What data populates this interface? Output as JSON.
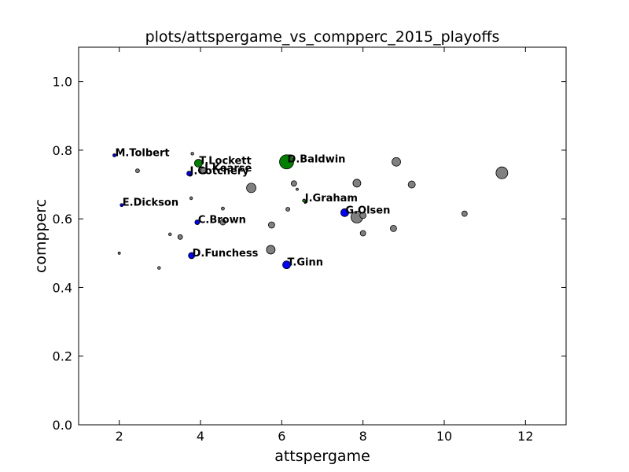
{
  "chart_data": {
    "type": "scatter",
    "title": "plots/attspergame_vs_compperc_2015_playoffs",
    "xlabel": "attspergame",
    "ylabel": "compperc",
    "xlim": [
      1,
      13
    ],
    "ylim": [
      0.0,
      1.1
    ],
    "xticks": [
      2,
      4,
      6,
      8,
      10,
      12
    ],
    "yticks": [
      0.0,
      0.2,
      0.4,
      0.6,
      0.8,
      1.0
    ],
    "xtick_labels": [
      "2",
      "4",
      "6",
      "8",
      "10",
      "12"
    ],
    "ytick_labels": [
      "0.0",
      "0.2",
      "0.4",
      "0.6",
      "0.8",
      "1.0"
    ],
    "grid": false,
    "colors": {
      "gray": "#808080",
      "green": "#008000",
      "blue": "#0000ff"
    },
    "points": [
      {
        "x": 1.88,
        "y": 0.785,
        "size": 2,
        "color": "blue",
        "label": "M.Tolbert"
      },
      {
        "x": 3.95,
        "y": 0.762,
        "size": 5,
        "color": "green",
        "label": "T.Lockett"
      },
      {
        "x": 4.08,
        "y": 0.74,
        "size": 4,
        "color": "gray",
        "label": "J.Kearse"
      },
      {
        "x": 3.72,
        "y": 0.732,
        "size": 3,
        "color": "blue",
        "label": "J.Cotchery"
      },
      {
        "x": 6.12,
        "y": 0.766,
        "size": 9,
        "color": "green",
        "label": "D.Baldwin"
      },
      {
        "x": 2.06,
        "y": 0.64,
        "size": 2,
        "color": "blue",
        "label": "E.Dickson"
      },
      {
        "x": 6.55,
        "y": 0.653,
        "size": 2,
        "color": "green",
        "label": "J.Graham"
      },
      {
        "x": 7.55,
        "y": 0.618,
        "size": 5,
        "color": "blue",
        "label": "G.Olsen"
      },
      {
        "x": 3.92,
        "y": 0.59,
        "size": 3,
        "color": "blue",
        "label": "C.Brown"
      },
      {
        "x": 3.78,
        "y": 0.493,
        "size": 4,
        "color": "blue",
        "label": "D.Funchess"
      },
      {
        "x": 6.12,
        "y": 0.466,
        "size": 5,
        "color": "blue",
        "label": "T.Ginn"
      },
      {
        "x": 2.0,
        "y": 0.5,
        "size": 1.5,
        "color": "gray"
      },
      {
        "x": 2.45,
        "y": 0.74,
        "size": 2.5,
        "color": "gray"
      },
      {
        "x": 2.98,
        "y": 0.457,
        "size": 1.8,
        "color": "gray"
      },
      {
        "x": 3.25,
        "y": 0.555,
        "size": 1.8,
        "color": "gray"
      },
      {
        "x": 3.5,
        "y": 0.547,
        "size": 3,
        "color": "gray"
      },
      {
        "x": 3.77,
        "y": 0.66,
        "size": 1.8,
        "color": "gray"
      },
      {
        "x": 3.8,
        "y": 0.79,
        "size": 1.8,
        "color": "gray"
      },
      {
        "x": 4.55,
        "y": 0.63,
        "size": 2,
        "color": "gray"
      },
      {
        "x": 4.55,
        "y": 0.59,
        "size": 3.5,
        "color": "gray"
      },
      {
        "x": 5.25,
        "y": 0.69,
        "size": 6,
        "color": "gray"
      },
      {
        "x": 5.73,
        "y": 0.51,
        "size": 5.5,
        "color": "gray"
      },
      {
        "x": 5.75,
        "y": 0.582,
        "size": 4,
        "color": "gray"
      },
      {
        "x": 6.15,
        "y": 0.628,
        "size": 2.5,
        "color": "gray"
      },
      {
        "x": 6.3,
        "y": 0.703,
        "size": 3.5,
        "color": "gray"
      },
      {
        "x": 6.38,
        "y": 0.686,
        "size": 1.5,
        "color": "gray"
      },
      {
        "x": 7.85,
        "y": 0.704,
        "size": 5,
        "color": "gray"
      },
      {
        "x": 7.85,
        "y": 0.605,
        "size": 7.5,
        "color": "gray"
      },
      {
        "x": 8.0,
        "y": 0.61,
        "size": 4,
        "color": "gray"
      },
      {
        "x": 8.0,
        "y": 0.558,
        "size": 3.5,
        "color": "gray"
      },
      {
        "x": 8.75,
        "y": 0.572,
        "size": 4,
        "color": "gray"
      },
      {
        "x": 8.82,
        "y": 0.766,
        "size": 5.5,
        "color": "gray"
      },
      {
        "x": 9.2,
        "y": 0.7,
        "size": 4.5,
        "color": "gray"
      },
      {
        "x": 10.5,
        "y": 0.615,
        "size": 3.5,
        "color": "gray"
      },
      {
        "x": 11.42,
        "y": 0.734,
        "size": 7.5,
        "color": "gray"
      }
    ]
  }
}
